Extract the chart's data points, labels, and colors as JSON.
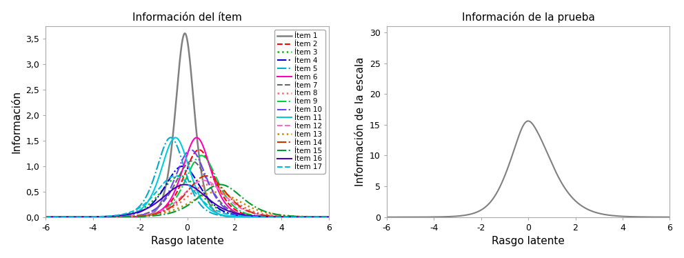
{
  "title1": "Información del ítem",
  "title2": "Información de la prueba",
  "xlabel": "Rasgo latente",
  "ylabel1": "Información",
  "ylabel2": "Información de la escala",
  "xlim": [
    -6,
    6
  ],
  "ylim1": [
    0,
    3.75
  ],
  "ylim2": [
    0,
    31
  ],
  "yticks1": [
    0.0,
    0.5,
    1.0,
    1.5,
    2.0,
    2.5,
    3.0,
    3.5
  ],
  "yticks2": [
    0,
    5,
    10,
    15,
    20,
    25,
    30
  ],
  "xticks": [
    -6,
    -4,
    -2,
    0,
    2,
    4,
    6
  ],
  "items": [
    {
      "label": "Ítem 1",
      "a": 3.8,
      "b": -0.1,
      "color": "#808080",
      "ls": "-",
      "lw": 1.8
    },
    {
      "label": "Ítem 2",
      "a": 2.3,
      "b": 0.5,
      "color": "#ff0000",
      "ls": "--",
      "lw": 1.5
    },
    {
      "label": "Ítem 3",
      "a": 1.8,
      "b": -0.3,
      "color": "#00bb00",
      "ls": ":",
      "lw": 1.8
    },
    {
      "label": "Ítem 4",
      "a": 2.0,
      "b": -0.2,
      "color": "#0000cc",
      "ls": "-.",
      "lw": 1.5
    },
    {
      "label": "Ítem 5",
      "a": 2.5,
      "b": -0.7,
      "color": "#00aacc",
      "ls": "-.",
      "lw": 1.5
    },
    {
      "label": "Ítem 6",
      "a": 2.5,
      "b": 0.4,
      "color": "#ff00bb",
      "ls": "-",
      "lw": 1.5
    },
    {
      "label": "Ítem 7",
      "a": 2.1,
      "b": 0.2,
      "color": "#666666",
      "ls": "--",
      "lw": 1.5
    },
    {
      "label": "Ítem 8",
      "a": 1.6,
      "b": 0.9,
      "color": "#ff6666",
      "ls": ":",
      "lw": 1.8
    },
    {
      "label": "Ítem 9",
      "a": 2.2,
      "b": 0.6,
      "color": "#00cc44",
      "ls": "-.",
      "lw": 1.5
    },
    {
      "label": "Ítem 10",
      "a": 2.3,
      "b": 0.15,
      "color": "#6644ff",
      "ls": "-.",
      "lw": 1.5
    },
    {
      "label": "Ítem 11",
      "a": 2.5,
      "b": -0.5,
      "color": "#00ccdd",
      "ls": "-",
      "lw": 1.5
    },
    {
      "label": "Ítem 12",
      "a": 1.7,
      "b": 0.7,
      "color": "#ff66cc",
      "ls": "--",
      "lw": 1.5
    },
    {
      "label": "Ítem 13",
      "a": 1.4,
      "b": 1.2,
      "color": "#cc8800",
      "ls": ":",
      "lw": 1.8
    },
    {
      "label": "Ítem 14",
      "a": 1.8,
      "b": 0.8,
      "color": "#cc3300",
      "ls": "-.",
      "lw": 1.5
    },
    {
      "label": "Ítem 15",
      "a": 1.6,
      "b": 1.4,
      "color": "#009933",
      "ls": "-.",
      "lw": 1.5
    },
    {
      "label": "Ítem 16",
      "a": 1.6,
      "b": -0.1,
      "color": "#4400bb",
      "ls": "-",
      "lw": 1.5
    },
    {
      "label": "Ítem 17",
      "a": 1.8,
      "b": -0.5,
      "color": "#00bbdd",
      "ls": "--",
      "lw": 1.5
    }
  ],
  "bg_color": "#ffffff",
  "axes_color": "#aaaaaa",
  "font_size": 11,
  "tick_fontsize": 9,
  "legend_fontsize": 7.5
}
